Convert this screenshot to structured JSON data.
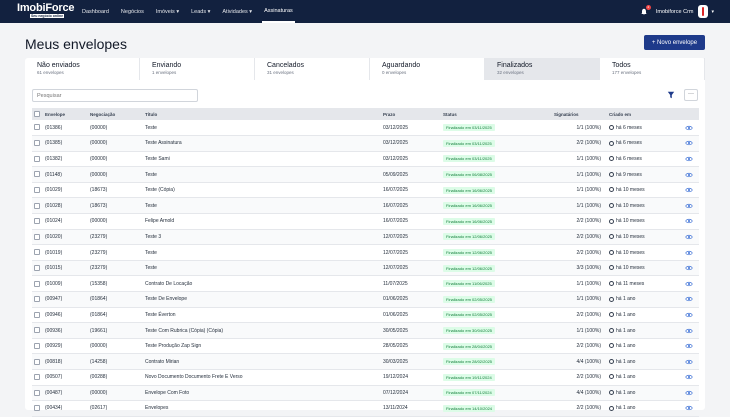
{
  "brand": {
    "name": "ImobiForce",
    "tagline": "Seu negócio online"
  },
  "nav": {
    "items": [
      {
        "label": "Dashboard",
        "active": false
      },
      {
        "label": "Negócios",
        "active": false
      },
      {
        "label": "Imóveis ▾",
        "active": false
      },
      {
        "label": "Leads ▾",
        "active": false
      },
      {
        "label": "Atividades ▾",
        "active": false
      },
      {
        "label": "Assinaturas",
        "active": true
      }
    ]
  },
  "user": {
    "name": "Imobiforce Crm",
    "notifications": "2"
  },
  "page": {
    "title": "Meus envelopes",
    "new_button": "+ Novo envelope"
  },
  "tabs": [
    {
      "label": "Não enviados",
      "count": "61 envelopes"
    },
    {
      "label": "Enviando",
      "count": "1 envelopes"
    },
    {
      "label": "Cancelados",
      "count": "31 envelopes"
    },
    {
      "label": "Aguardando",
      "count": "0 envelopes"
    },
    {
      "label": "Finalizados",
      "count": "32 envelopes",
      "active": true
    },
    {
      "label": "Todos",
      "count": "177 envelopes"
    }
  ],
  "search": {
    "placeholder": "Pesquisar"
  },
  "more": "···",
  "colors": {
    "accent": "#1e3a8a",
    "topbar": "#12213f",
    "success_bg": "#dcfce7",
    "success_text": "#15803d"
  },
  "table": {
    "headers": [
      "Envelope",
      "Negociação",
      "Título",
      "Prazo",
      "Status",
      "Signatários",
      "Criado em"
    ],
    "rows": [
      {
        "envelope": "(01386)",
        "negociacao": "(00000)",
        "titulo": "Teste",
        "prazo": "03/12/2025",
        "status": "Finalizado em 03/11/2025",
        "signatarios": "1/1 (100%)",
        "criado": "há 6 meses"
      },
      {
        "envelope": "(01385)",
        "negociacao": "(00000)",
        "titulo": "Teste Assinatura",
        "prazo": "03/12/2025",
        "status": "Finalizado em 03/11/2025",
        "signatarios": "2/2 (100%)",
        "criado": "há 6 meses"
      },
      {
        "envelope": "(01382)",
        "negociacao": "(00000)",
        "titulo": "Teste Sami",
        "prazo": "03/12/2025",
        "status": "Finalizado em 03/11/2025",
        "signatarios": "1/1 (100%)",
        "criado": "há 6 meses"
      },
      {
        "envelope": "(01148)",
        "negociacao": "(00000)",
        "titulo": "Teste",
        "prazo": "05/09/2025",
        "status": "Finalizado em 06/08/2025",
        "signatarios": "1/1 (100%)",
        "criado": "há 9 meses"
      },
      {
        "envelope": "(01029)",
        "negociacao": "(18673)",
        "titulo": "Teste (Cópia)",
        "prazo": "16/07/2025",
        "status": "Finalizado em 16/06/2025",
        "signatarios": "1/1 (100%)",
        "criado": "há 10 meses"
      },
      {
        "envelope": "(01028)",
        "negociacao": "(18673)",
        "titulo": "Teste",
        "prazo": "16/07/2025",
        "status": "Finalizado em 16/06/2025",
        "signatarios": "1/1 (100%)",
        "criado": "há 10 meses"
      },
      {
        "envelope": "(01024)",
        "negociacao": "(00000)",
        "titulo": "Felipe Arnold",
        "prazo": "16/07/2025",
        "status": "Finalizado em 16/06/2025",
        "signatarios": "2/2 (100%)",
        "criado": "há 10 meses"
      },
      {
        "envelope": "(01020)",
        "negociacao": "(23279)",
        "titulo": "Teste 3",
        "prazo": "12/07/2025",
        "status": "Finalizado em 12/06/2025",
        "signatarios": "2/2 (100%)",
        "criado": "há 10 meses"
      },
      {
        "envelope": "(01019)",
        "negociacao": "(23279)",
        "titulo": "Teste",
        "prazo": "12/07/2025",
        "status": "Finalizado em 12/06/2025",
        "signatarios": "2/2 (100%)",
        "criado": "há 10 meses"
      },
      {
        "envelope": "(01015)",
        "negociacao": "(23279)",
        "titulo": "Teste",
        "prazo": "12/07/2025",
        "status": "Finalizado em 12/06/2025",
        "signatarios": "3/3 (100%)",
        "criado": "há 10 meses"
      },
      {
        "envelope": "(01009)",
        "negociacao": "(15358)",
        "titulo": "Contrato De Locação",
        "prazo": "11/07/2025",
        "status": "Finalizado em 11/06/2025",
        "signatarios": "1/1 (100%)",
        "criado": "há 11 meses"
      },
      {
        "envelope": "(00947)",
        "negociacao": "(01864)",
        "titulo": "Teste De Envelope",
        "prazo": "01/06/2025",
        "status": "Finalizado em 02/05/2025",
        "signatarios": "1/1 (100%)",
        "criado": "há 1 ano"
      },
      {
        "envelope": "(00946)",
        "negociacao": "(01864)",
        "titulo": "Teste Éverton",
        "prazo": "01/06/2025",
        "status": "Finalizado em 02/05/2025",
        "signatarios": "2/2 (100%)",
        "criado": "há 1 ano"
      },
      {
        "envelope": "(00936)",
        "negociacao": "(19661)",
        "titulo": "Teste Com Rubrica (Cópia) (Cópia)",
        "prazo": "30/05/2025",
        "status": "Finalizado em 30/04/2025",
        "signatarios": "1/1 (100%)",
        "criado": "há 1 ano"
      },
      {
        "envelope": "(00929)",
        "negociacao": "(00000)",
        "titulo": "Teste Produção Zap Sign",
        "prazo": "28/05/2025",
        "status": "Finalizado em 28/04/2025",
        "signatarios": "2/2 (100%)",
        "criado": "há 1 ano"
      },
      {
        "envelope": "(00818)",
        "negociacao": "(14258)",
        "titulo": "Contrato Mirian",
        "prazo": "30/03/2025",
        "status": "Finalizado em 28/02/2025",
        "signatarios": "4/4 (100%)",
        "criado": "há 1 ano"
      },
      {
        "envelope": "(00507)",
        "negociacao": "(00288)",
        "titulo": "Novo Documento Documento Frete E Verso",
        "prazo": "19/12/2024",
        "status": "Finalizado em 19/11/2024",
        "signatarios": "2/2 (100%)",
        "criado": "há 1 ano"
      },
      {
        "envelope": "(00487)",
        "negociacao": "(00000)",
        "titulo": "Envelope Com Foto",
        "prazo": "07/12/2024",
        "status": "Finalizado em 07/11/2024",
        "signatarios": "4/4 (100%)",
        "criado": "há 1 ano"
      },
      {
        "envelope": "(00434)",
        "negociacao": "(02617)",
        "titulo": "Envelopes",
        "prazo": "13/11/2024",
        "status": "Finalizado em 14/10/2024",
        "signatarios": "2/2 (100%)",
        "criado": "há 1 ano"
      }
    ]
  }
}
